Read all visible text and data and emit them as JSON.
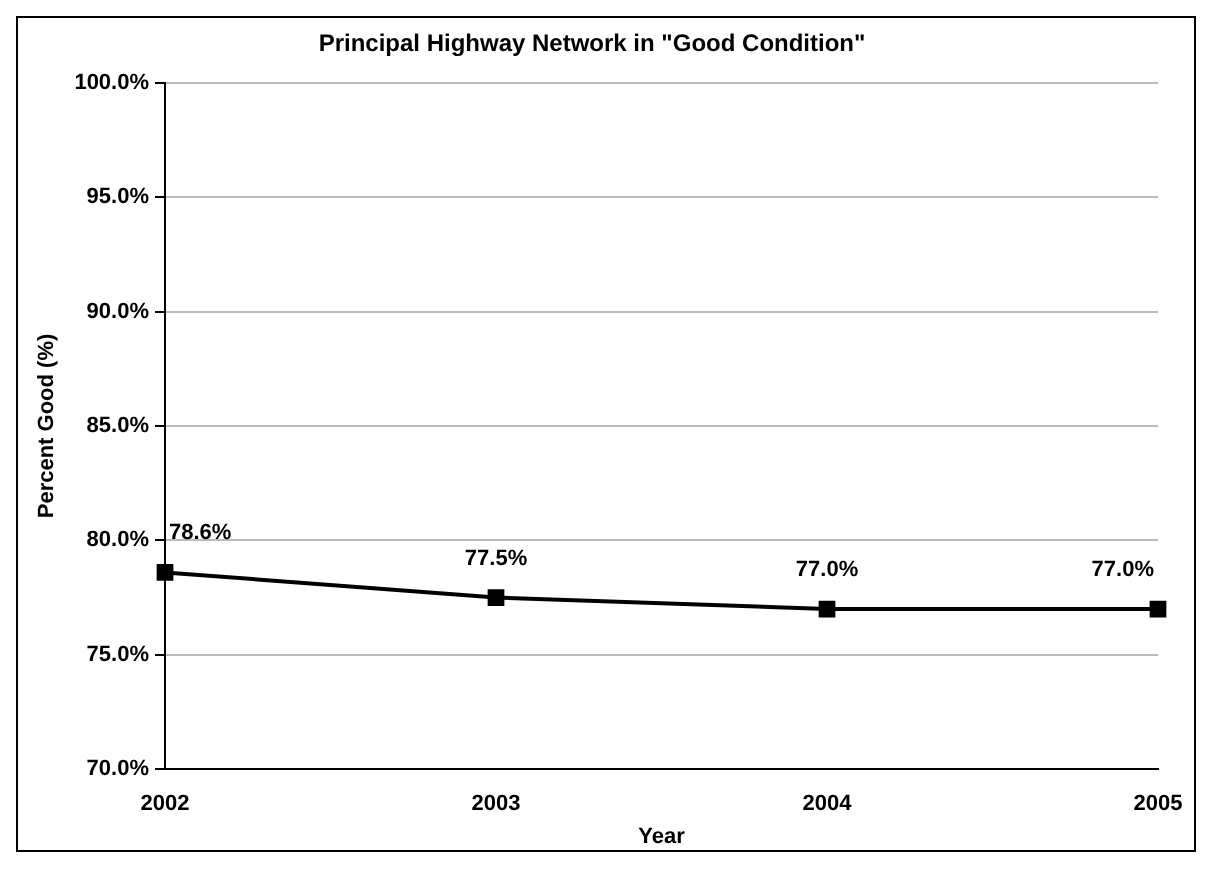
{
  "chart_data": {
    "type": "line",
    "title": "Principal Highway Network in \"Good Condition\"",
    "xlabel": "Year",
    "ylabel": "Percent Good (%)",
    "categories": [
      "2002",
      "2003",
      "2004",
      "2005"
    ],
    "series": [
      {
        "color": "#000000",
        "values": [
          78.6,
          77.5,
          77.0,
          77.0
        ],
        "value_labels": [
          "78.6%",
          "77.5%",
          "77.0%",
          "77.0%"
        ]
      }
    ],
    "ylim": [
      70,
      100
    ],
    "yticks": [
      {
        "value": 70,
        "label": "70.0%"
      },
      {
        "value": 75,
        "label": "75.0%"
      },
      {
        "value": 80,
        "label": "80.0%"
      },
      {
        "value": 85,
        "label": "85.0%"
      },
      {
        "value": 90,
        "label": "90.0%"
      },
      {
        "value": 95,
        "label": "95.0%"
      },
      {
        "value": 100,
        "label": "100.0%"
      }
    ],
    "grid": "y",
    "legend": false,
    "marker": "square",
    "line_style": "solid"
  }
}
